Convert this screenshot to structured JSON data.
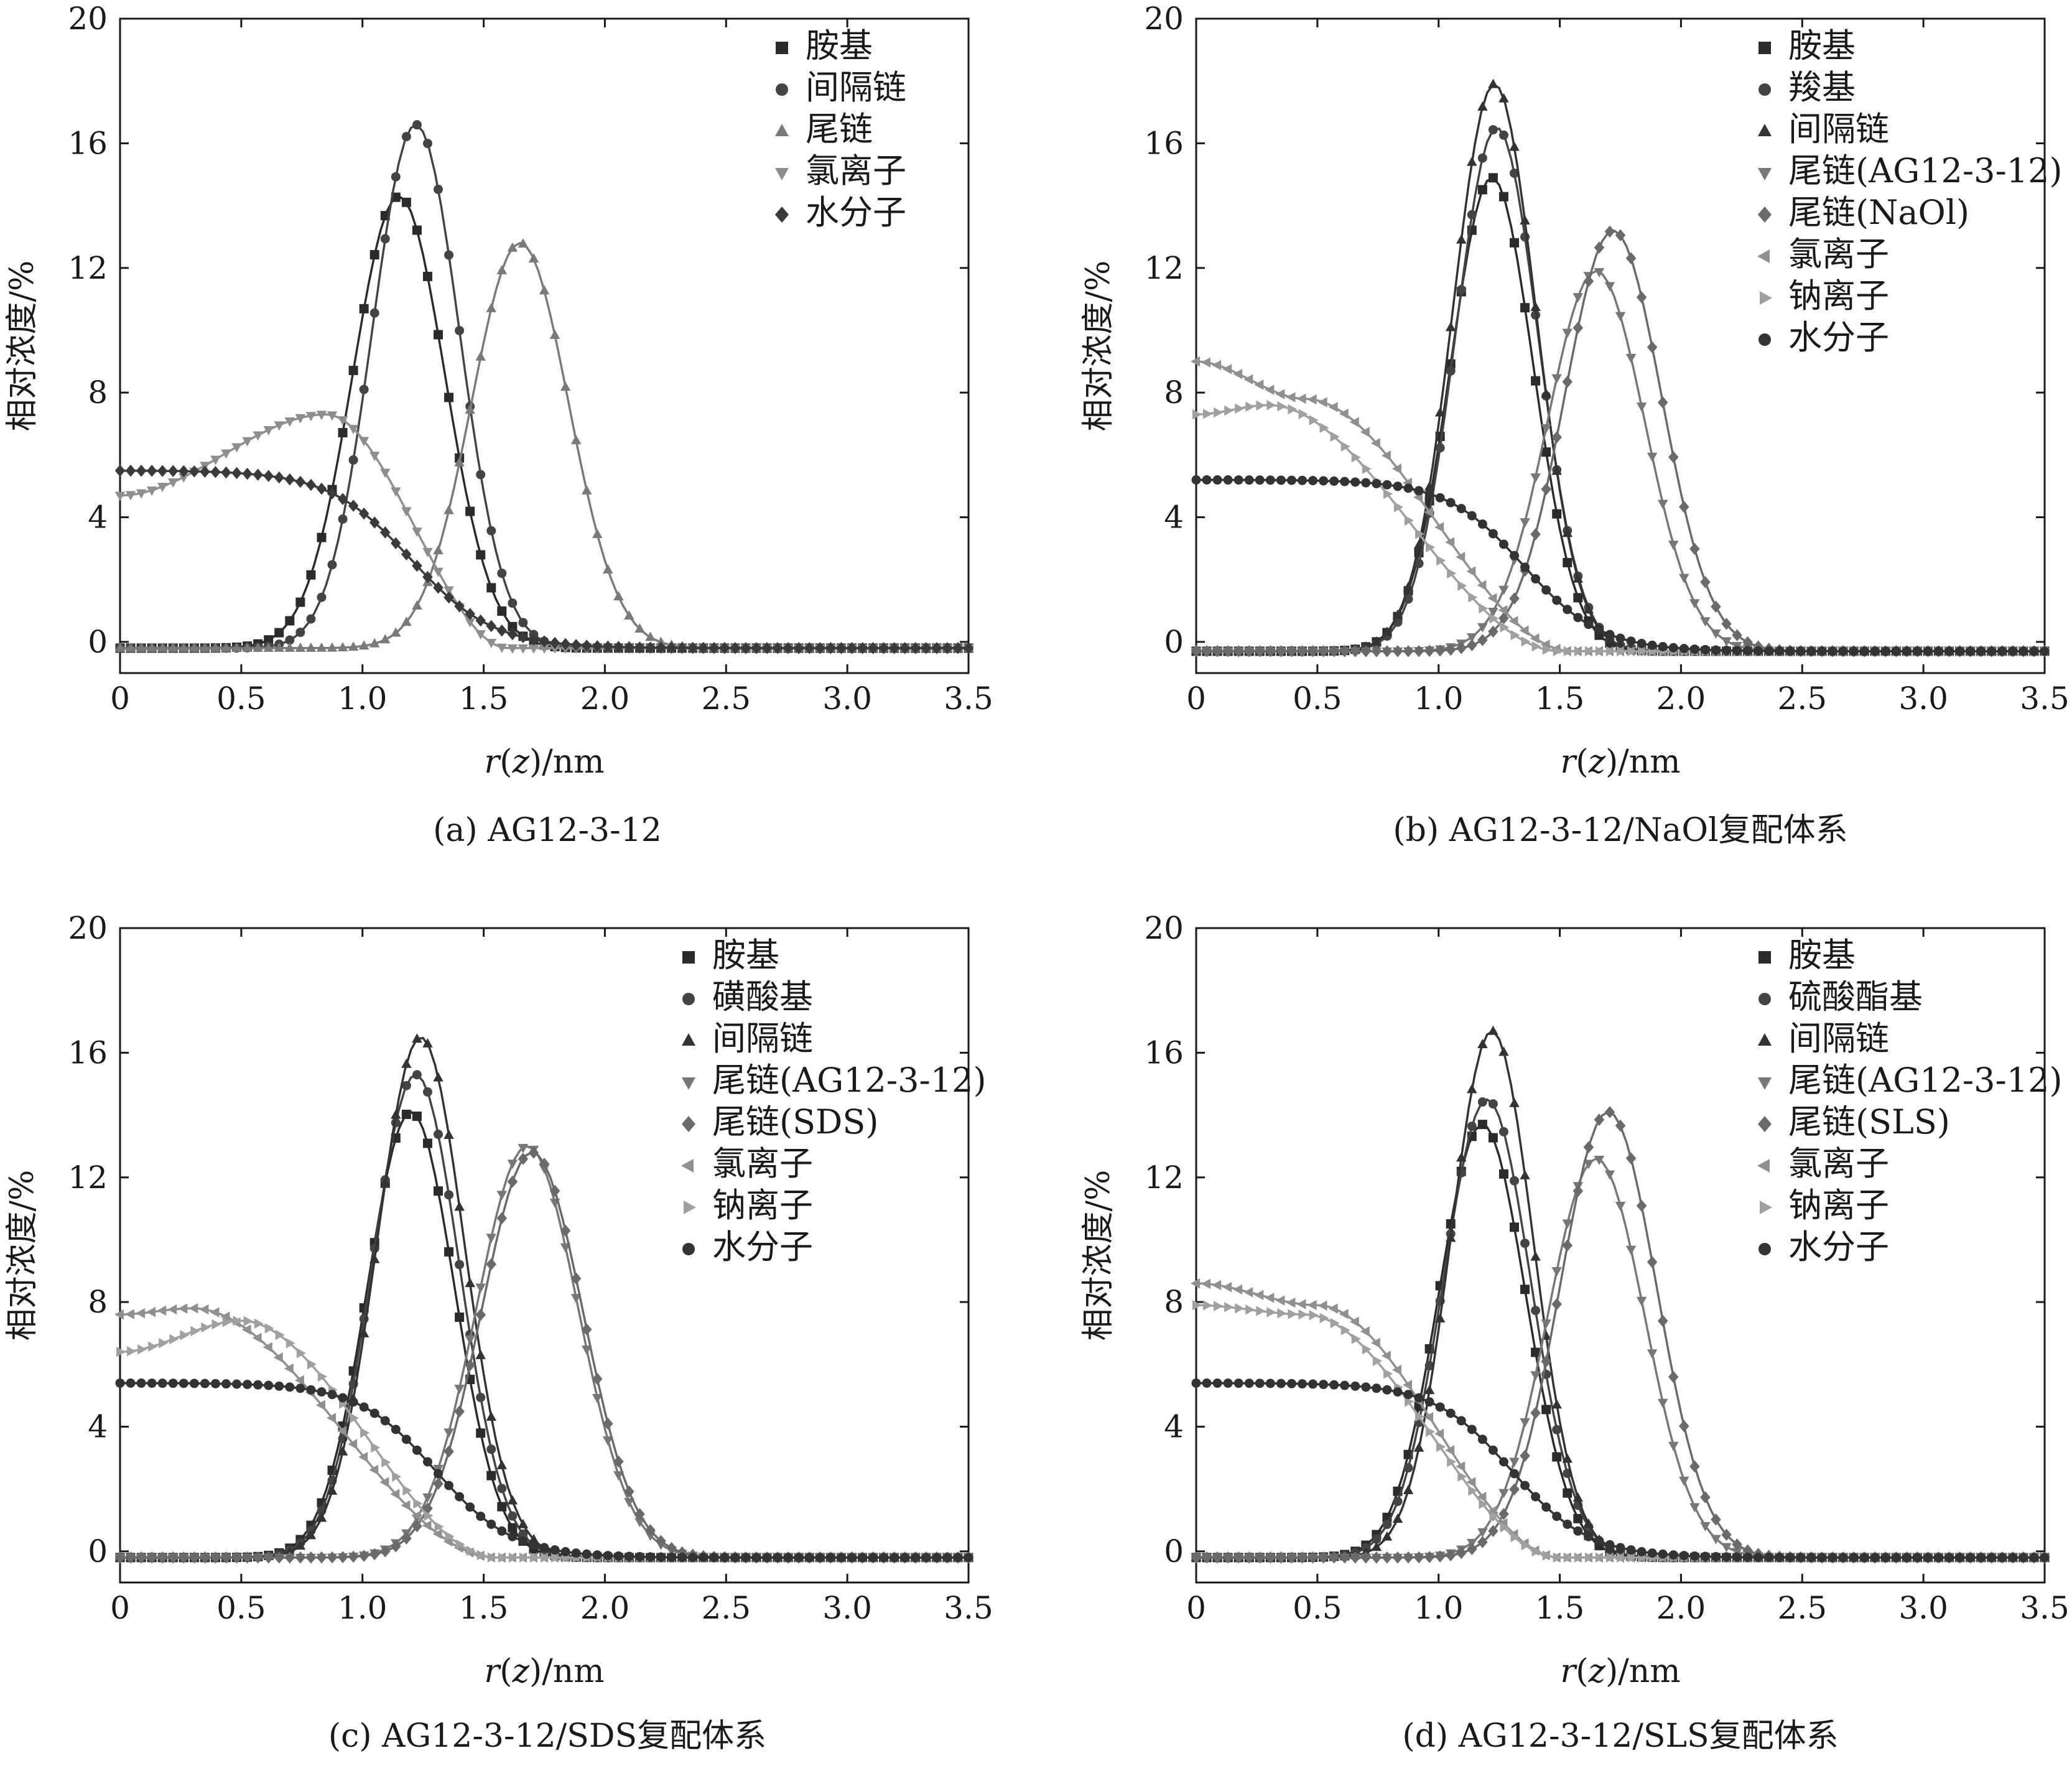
{
  "chart_data": [
    {
      "type": "line",
      "caption": "(a) AG12-3-12",
      "xlabel_italic": "r",
      "xlabel_paren_italic": "z",
      "xlabel_unit": "/nm",
      "ylabel": "相对浓度/%",
      "xlim": [
        0,
        3.5
      ],
      "ylim": [
        -1,
        20
      ],
      "xticks": [
        "0",
        "0.5",
        "1.0",
        "1.5",
        "2.0",
        "2.5",
        "3.0",
        "3.5"
      ],
      "yticks": [
        "0",
        "4",
        "8",
        "12",
        "16",
        "20"
      ],
      "legend_position": "top-right",
      "series": [
        {
          "name": "胺基",
          "marker": "square",
          "color": "#2b2b2b",
          "kind": "gauss",
          "mu": 1.15,
          "sigma": 0.19,
          "amp": 14.5,
          "base": -0.2
        },
        {
          "name": "间隔链",
          "marker": "circle",
          "color": "#444444",
          "kind": "gauss",
          "mu": 1.22,
          "sigma": 0.18,
          "amp": 16.8,
          "base": -0.2
        },
        {
          "name": "尾链",
          "marker": "triangle-up",
          "color": "#7a7a7a",
          "kind": "gauss",
          "mu": 1.65,
          "sigma": 0.2,
          "amp": 13.0,
          "base": -0.2
        },
        {
          "name": "氯离子",
          "marker": "triangle-down",
          "color": "#8e8e8e",
          "kind": "ion",
          "start": 4.7,
          "plateau": 7.3,
          "peak_at": 0.85,
          "end_at": 1.6,
          "base": -0.2
        },
        {
          "name": "水分子",
          "marker": "diamond",
          "color": "#3a3a3a",
          "kind": "water",
          "top": 5.5,
          "mid": 1.2,
          "width": 0.17,
          "base": -0.2
        }
      ]
    },
    {
      "type": "line",
      "caption": "(b) AG12-3-12/NaOl复配体系",
      "xlabel_italic": "r",
      "xlabel_paren_italic": "z",
      "xlabel_unit": "/nm",
      "ylabel": "相对浓度/%",
      "xlim": [
        0,
        3.5
      ],
      "ylim": [
        -1,
        20
      ],
      "xticks": [
        "0",
        "0.5",
        "1.0",
        "1.5",
        "2.0",
        "2.5",
        "3.0",
        "3.5"
      ],
      "yticks": [
        "0",
        "4",
        "8",
        "12",
        "16",
        "20"
      ],
      "legend_position": "top-right",
      "series": [
        {
          "name": "胺基",
          "marker": "square",
          "color": "#2b2b2b",
          "kind": "gauss",
          "mu": 1.22,
          "sigma": 0.17,
          "amp": 15.2,
          "base": -0.3
        },
        {
          "name": "羧基",
          "marker": "circle",
          "color": "#444444",
          "kind": "gauss",
          "mu": 1.24,
          "sigma": 0.17,
          "amp": 16.8,
          "base": -0.3
        },
        {
          "name": "间隔链",
          "marker": "triangle-up",
          "color": "#333333",
          "kind": "gauss",
          "mu": 1.23,
          "sigma": 0.17,
          "amp": 18.2,
          "base": -0.3
        },
        {
          "name": "尾链(AG12-3-12)",
          "marker": "triangle-down",
          "color": "#777777",
          "kind": "gauss",
          "mu": 1.65,
          "sigma": 0.2,
          "amp": 12.2,
          "base": -0.3
        },
        {
          "name": "尾链(NaOl)",
          "marker": "diamond",
          "color": "#6a6a6a",
          "kind": "gauss",
          "mu": 1.72,
          "sigma": 0.2,
          "amp": 13.5,
          "base": -0.3
        },
        {
          "name": "氯离子",
          "marker": "triangle-left",
          "color": "#909090",
          "kind": "ion",
          "start": 9.0,
          "plateau": 7.8,
          "peak_at": 0.45,
          "end_at": 1.55,
          "base": -0.3
        },
        {
          "name": "钠离子",
          "marker": "triangle-right",
          "color": "#a0a0a0",
          "kind": "ion",
          "start": 7.3,
          "plateau": 7.6,
          "peak_at": 0.3,
          "end_at": 1.5,
          "base": -0.3
        },
        {
          "name": "水分子",
          "marker": "circle",
          "color": "#333333",
          "kind": "water",
          "top": 5.2,
          "mid": 1.35,
          "width": 0.16,
          "base": -0.3
        }
      ]
    },
    {
      "type": "line",
      "caption": "(c) AG12-3-12/SDS复配体系",
      "xlabel_italic": "r",
      "xlabel_paren_italic": "z",
      "xlabel_unit": "/nm",
      "ylabel": "相对浓度/%",
      "xlim": [
        0,
        3.5
      ],
      "ylim": [
        -1,
        20
      ],
      "xticks": [
        "0",
        "0.5",
        "1.0",
        "1.5",
        "2.0",
        "2.5",
        "3.0",
        "3.5"
      ],
      "yticks": [
        "0",
        "4",
        "8",
        "12",
        "16",
        "20"
      ],
      "legend_position": "top-right",
      "series": [
        {
          "name": "胺基",
          "marker": "square",
          "color": "#2b2b2b",
          "kind": "gauss",
          "mu": 1.2,
          "sigma": 0.18,
          "amp": 14.3,
          "base": -0.2
        },
        {
          "name": "磺酸基",
          "marker": "circle",
          "color": "#444444",
          "kind": "gauss",
          "mu": 1.22,
          "sigma": 0.18,
          "amp": 15.5,
          "base": -0.2
        },
        {
          "name": "间隔链",
          "marker": "triangle-up",
          "color": "#333333",
          "kind": "gauss",
          "mu": 1.24,
          "sigma": 0.18,
          "amp": 16.7,
          "base": -0.2
        },
        {
          "name": "尾链(AG12-3-12)",
          "marker": "triangle-down",
          "color": "#777777",
          "kind": "gauss",
          "mu": 1.68,
          "sigma": 0.21,
          "amp": 13.2,
          "base": -0.2
        },
        {
          "name": "尾链(SDS)",
          "marker": "diamond",
          "color": "#6a6a6a",
          "kind": "gauss",
          "mu": 1.7,
          "sigma": 0.21,
          "amp": 13.0,
          "base": -0.2
        },
        {
          "name": "氯离子",
          "marker": "triangle-left",
          "color": "#909090",
          "kind": "ion",
          "start": 7.6,
          "plateau": 7.8,
          "peak_at": 0.3,
          "end_at": 1.55,
          "base": -0.2
        },
        {
          "name": "钠离子",
          "marker": "triangle-right",
          "color": "#a0a0a0",
          "kind": "ion",
          "start": 6.4,
          "plateau": 7.4,
          "peak_at": 0.5,
          "end_at": 1.55,
          "base": -0.2
        },
        {
          "name": "水分子",
          "marker": "circle",
          "color": "#333333",
          "kind": "water",
          "top": 5.4,
          "mid": 1.3,
          "width": 0.16,
          "base": -0.2
        }
      ]
    },
    {
      "type": "line",
      "caption": "(d) AG12-3-12/SLS复配体系",
      "xlabel_italic": "r",
      "xlabel_paren_italic": "z",
      "xlabel_unit": "/nm",
      "ylabel": "相对浓度/%",
      "xlim": [
        0,
        3.5
      ],
      "ylim": [
        -1,
        20
      ],
      "xticks": [
        "0",
        "0.5",
        "1.0",
        "1.5",
        "2.0",
        "2.5",
        "3.0",
        "3.5"
      ],
      "yticks": [
        "0",
        "4",
        "8",
        "12",
        "16",
        "20"
      ],
      "legend_position": "top-right",
      "series": [
        {
          "name": "胺基",
          "marker": "square",
          "color": "#2b2b2b",
          "kind": "gauss",
          "mu": 1.18,
          "sigma": 0.18,
          "amp": 13.9,
          "base": -0.2
        },
        {
          "name": "硫酸酯基",
          "marker": "circle",
          "color": "#444444",
          "kind": "gauss",
          "mu": 1.2,
          "sigma": 0.18,
          "amp": 14.7,
          "base": -0.2
        },
        {
          "name": "间隔链",
          "marker": "triangle-up",
          "color": "#333333",
          "kind": "gauss",
          "mu": 1.22,
          "sigma": 0.17,
          "amp": 16.9,
          "base": -0.2
        },
        {
          "name": "尾链(AG12-3-12)",
          "marker": "triangle-down",
          "color": "#777777",
          "kind": "gauss",
          "mu": 1.65,
          "sigma": 0.2,
          "amp": 12.8,
          "base": -0.2
        },
        {
          "name": "尾链(SLS)",
          "marker": "diamond",
          "color": "#6a6a6a",
          "kind": "gauss",
          "mu": 1.7,
          "sigma": 0.2,
          "amp": 14.3,
          "base": -0.2
        },
        {
          "name": "氯离子",
          "marker": "triangle-left",
          "color": "#909090",
          "kind": "ion",
          "start": 8.6,
          "plateau": 7.9,
          "peak_at": 0.5,
          "end_at": 1.5,
          "base": -0.2
        },
        {
          "name": "钠离子",
          "marker": "triangle-right",
          "color": "#a0a0a0",
          "kind": "ion",
          "start": 7.9,
          "plateau": 7.6,
          "peak_at": 0.45,
          "end_at": 1.5,
          "base": -0.2
        },
        {
          "name": "水分子",
          "marker": "circle",
          "color": "#333333",
          "kind": "water",
          "top": 5.4,
          "mid": 1.3,
          "width": 0.16,
          "base": -0.2
        }
      ]
    }
  ]
}
